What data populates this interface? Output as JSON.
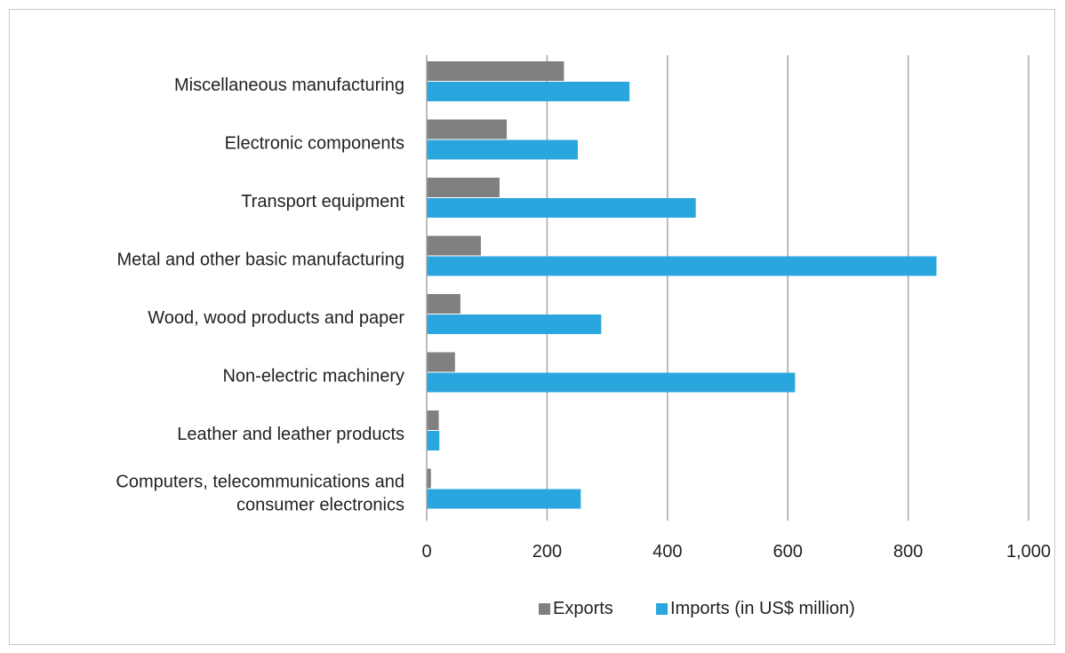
{
  "chart_data": {
    "type": "bar",
    "orientation": "horizontal",
    "title": "",
    "xlabel": "",
    "ylabel": "",
    "xlim": [
      0,
      1000
    ],
    "ticks": [
      "0",
      "200",
      "400",
      "600",
      "800",
      "1,000"
    ],
    "tick_values": [
      0,
      200,
      400,
      600,
      800,
      1000
    ],
    "grid": "vertical",
    "legend_position": "bottom",
    "categories": [
      [
        "Miscellaneous manufacturing"
      ],
      [
        "Electronic components"
      ],
      [
        "Transport equipment"
      ],
      [
        "Metal and other basic manufacturing"
      ],
      [
        "Wood, wood products and paper"
      ],
      [
        "Non-electric machinery"
      ],
      [
        "Leather and leather products"
      ],
      [
        "Computers, telecommunications and",
        "consumer electronics"
      ]
    ],
    "series": [
      {
        "name": "Exports",
        "color": "#808080",
        "values": [
          228,
          133,
          121,
          90,
          56,
          47,
          20,
          7
        ]
      },
      {
        "name": "Imports (in US$ million)",
        "color": "#29a6dd",
        "values": [
          337,
          251,
          447,
          847,
          290,
          612,
          21,
          256
        ]
      }
    ]
  }
}
